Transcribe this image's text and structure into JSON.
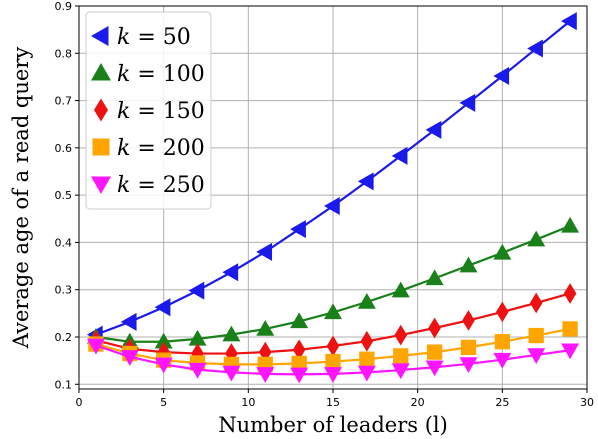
{
  "chart_data": {
    "type": "line",
    "title": "",
    "xlabel": "Number of leaders (l)",
    "ylabel": "Average age of a read query",
    "xlim": [
      0,
      30
    ],
    "ylim": [
      0.09,
      0.9
    ],
    "xticks": [
      "0",
      "5",
      "10",
      "15",
      "20",
      "25",
      "30"
    ],
    "yticks": [
      "0.1",
      "0.2",
      "0.3",
      "0.4",
      "0.5",
      "0.6",
      "0.7",
      "0.8",
      "0.9"
    ],
    "grid": true,
    "legend_position": "top-left",
    "x": [
      1,
      3,
      5,
      7,
      9,
      11,
      13,
      15,
      17,
      19,
      21,
      23,
      25,
      27,
      29
    ],
    "series": [
      {
        "name": "k = 50",
        "marker": "triangle-left",
        "color": "#1a1aeb",
        "values": [
          0.205,
          0.232,
          0.263,
          0.298,
          0.337,
          0.38,
          0.428,
          0.477,
          0.529,
          0.583,
          0.638,
          0.695,
          0.752,
          0.81,
          0.868
        ]
      },
      {
        "name": "k = 100",
        "marker": "triangle-up",
        "color": "#1a801a",
        "values": [
          0.2,
          0.19,
          0.19,
          0.196,
          0.205,
          0.217,
          0.233,
          0.252,
          0.274,
          0.298,
          0.324,
          0.351,
          0.378,
          0.406,
          0.435
        ]
      },
      {
        "name": "k = 150",
        "marker": "diamond",
        "color": "#ee1111",
        "values": [
          0.193,
          0.175,
          0.168,
          0.165,
          0.165,
          0.168,
          0.173,
          0.181,
          0.191,
          0.204,
          0.219,
          0.235,
          0.253,
          0.272,
          0.292
        ]
      },
      {
        "name": "k = 200",
        "marker": "square",
        "color": "#ffa500",
        "values": [
          0.185,
          0.165,
          0.151,
          0.145,
          0.142,
          0.142,
          0.144,
          0.148,
          0.153,
          0.16,
          0.168,
          0.178,
          0.19,
          0.203,
          0.217
        ]
      },
      {
        "name": "k = 250",
        "marker": "triangle-down",
        "color": "#ff14ff",
        "values": [
          0.182,
          0.158,
          0.142,
          0.131,
          0.125,
          0.122,
          0.121,
          0.122,
          0.125,
          0.13,
          0.136,
          0.143,
          0.152,
          0.162,
          0.172
        ]
      }
    ]
  }
}
